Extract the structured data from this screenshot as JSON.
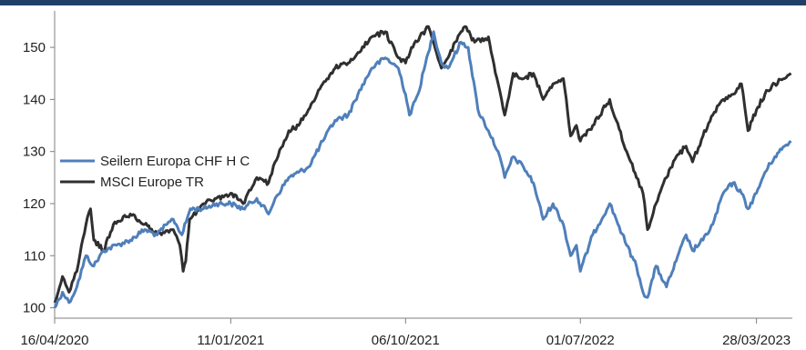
{
  "colors": {
    "header_bar": "#1f3f66",
    "axis": "#7f7f7f",
    "seilern": "#4f7fba",
    "msci": "#2f2f2f"
  },
  "chart_data": {
    "type": "line",
    "title": "",
    "xlabel": "",
    "ylabel": "",
    "grid": false,
    "legend_position": "left-middle",
    "xlim": [
      "2020-04-16",
      "2023-05-22"
    ],
    "ylim": [
      98,
      157
    ],
    "yticks": [
      100,
      110,
      120,
      130,
      140,
      150
    ],
    "xticks": [
      "16/04/2020",
      "11/01/2021",
      "06/10/2021",
      "01/07/2022",
      "28/03/2023"
    ],
    "series": [
      {
        "name": "Seilern Europa CHF H C",
        "color": "#4f7fba",
        "points": [
          [
            "2020-04-16",
            100
          ],
          [
            "2020-04-28",
            103
          ],
          [
            "2020-05-08",
            101
          ],
          [
            "2020-05-20",
            104
          ],
          [
            "2020-06-03",
            110
          ],
          [
            "2020-06-15",
            108
          ],
          [
            "2020-06-30",
            111
          ],
          [
            "2020-07-20",
            112
          ],
          [
            "2020-08-10",
            113
          ],
          [
            "2020-09-01",
            115
          ],
          [
            "2020-09-20",
            114
          ],
          [
            "2020-10-05",
            116
          ],
          [
            "2020-10-15",
            117
          ],
          [
            "2020-10-28",
            114
          ],
          [
            "2020-11-10",
            119
          ],
          [
            "2020-11-30",
            119
          ],
          [
            "2020-12-20",
            120
          ],
          [
            "2021-01-11",
            120
          ],
          [
            "2021-01-30",
            119
          ],
          [
            "2021-02-20",
            121
          ],
          [
            "2021-03-10",
            118
          ],
          [
            "2021-03-20",
            121
          ],
          [
            "2021-04-10",
            125
          ],
          [
            "2021-04-25",
            126
          ],
          [
            "2021-05-10",
            127
          ],
          [
            "2021-06-01",
            132
          ],
          [
            "2021-06-20",
            136
          ],
          [
            "2021-07-10",
            137
          ],
          [
            "2021-07-25",
            141
          ],
          [
            "2021-08-15",
            146
          ],
          [
            "2021-09-05",
            148
          ],
          [
            "2021-09-25",
            146
          ],
          [
            "2021-10-06",
            141
          ],
          [
            "2021-10-12",
            137
          ],
          [
            "2021-10-25",
            141
          ],
          [
            "2021-11-10",
            149
          ],
          [
            "2021-11-18",
            153
          ],
          [
            "2021-11-30",
            147
          ],
          [
            "2021-12-10",
            146
          ],
          [
            "2021-12-30",
            151
          ],
          [
            "2022-01-10",
            150
          ],
          [
            "2022-01-25",
            138
          ],
          [
            "2022-02-10",
            134
          ],
          [
            "2022-02-25",
            130
          ],
          [
            "2022-03-07",
            125
          ],
          [
            "2022-03-20",
            129
          ],
          [
            "2022-04-05",
            127
          ],
          [
            "2022-04-20",
            124
          ],
          [
            "2022-05-05",
            117
          ],
          [
            "2022-05-20",
            120
          ],
          [
            "2022-06-05",
            116
          ],
          [
            "2022-06-16",
            110
          ],
          [
            "2022-06-25",
            112
          ],
          [
            "2022-07-01",
            107
          ],
          [
            "2022-07-20",
            114
          ],
          [
            "2022-08-15",
            120
          ],
          [
            "2022-08-25",
            117
          ],
          [
            "2022-09-10",
            112
          ],
          [
            "2022-09-25",
            108
          ],
          [
            "2022-10-05",
            103
          ],
          [
            "2022-10-12",
            102
          ],
          [
            "2022-10-25",
            108
          ],
          [
            "2022-11-10",
            104
          ],
          [
            "2022-11-25",
            109
          ],
          [
            "2022-12-10",
            114
          ],
          [
            "2022-12-20",
            111
          ],
          [
            "2023-01-05",
            113
          ],
          [
            "2023-01-20",
            116
          ],
          [
            "2023-02-05",
            122
          ],
          [
            "2023-02-20",
            124
          ],
          [
            "2023-03-05",
            122
          ],
          [
            "2023-03-15",
            119
          ],
          [
            "2023-03-28",
            122
          ],
          [
            "2023-04-10",
            126
          ],
          [
            "2023-04-25",
            129
          ],
          [
            "2023-05-10",
            131
          ],
          [
            "2023-05-20",
            132
          ]
        ]
      },
      {
        "name": "MSCI Europe TR",
        "color": "#2f2f2f",
        "points": [
          [
            "2020-04-16",
            101
          ],
          [
            "2020-04-28",
            106
          ],
          [
            "2020-05-08",
            103
          ],
          [
            "2020-05-20",
            107
          ],
          [
            "2020-06-03",
            116
          ],
          [
            "2020-06-10",
            119
          ],
          [
            "2020-06-15",
            113
          ],
          [
            "2020-06-30",
            111
          ],
          [
            "2020-07-15",
            116
          ],
          [
            "2020-08-10",
            118
          ],
          [
            "2020-09-01",
            116
          ],
          [
            "2020-09-20",
            114
          ],
          [
            "2020-10-15",
            115
          ],
          [
            "2020-10-25",
            112
          ],
          [
            "2020-10-30",
            107
          ],
          [
            "2020-11-03",
            109
          ],
          [
            "2020-11-09",
            117
          ],
          [
            "2020-11-30",
            120
          ],
          [
            "2020-12-20",
            121
          ],
          [
            "2021-01-11",
            122
          ],
          [
            "2021-01-30",
            120
          ],
          [
            "2021-02-20",
            125
          ],
          [
            "2021-03-10",
            124
          ],
          [
            "2021-03-20",
            128
          ],
          [
            "2021-04-10",
            134
          ],
          [
            "2021-04-25",
            135
          ],
          [
            "2021-05-10",
            138
          ],
          [
            "2021-06-01",
            143
          ],
          [
            "2021-06-20",
            146
          ],
          [
            "2021-07-10",
            147
          ],
          [
            "2021-07-25",
            149
          ],
          [
            "2021-08-15",
            152
          ],
          [
            "2021-09-05",
            153
          ],
          [
            "2021-09-25",
            148
          ],
          [
            "2021-10-06",
            147
          ],
          [
            "2021-10-15",
            150
          ],
          [
            "2021-11-10",
            154
          ],
          [
            "2021-11-20",
            150
          ],
          [
            "2021-11-30",
            146
          ],
          [
            "2021-12-10",
            148
          ],
          [
            "2021-12-30",
            153
          ],
          [
            "2022-01-05",
            154
          ],
          [
            "2022-01-20",
            151
          ],
          [
            "2022-02-10",
            152
          ],
          [
            "2022-02-25",
            143
          ],
          [
            "2022-03-07",
            137
          ],
          [
            "2022-03-20",
            145
          ],
          [
            "2022-04-05",
            144
          ],
          [
            "2022-04-20",
            145
          ],
          [
            "2022-05-05",
            140
          ],
          [
            "2022-05-20",
            143
          ],
          [
            "2022-06-05",
            144
          ],
          [
            "2022-06-16",
            133
          ],
          [
            "2022-06-25",
            135
          ],
          [
            "2022-07-01",
            132
          ],
          [
            "2022-07-20",
            135
          ],
          [
            "2022-08-15",
            140
          ],
          [
            "2022-08-25",
            136
          ],
          [
            "2022-09-10",
            130
          ],
          [
            "2022-09-25",
            125
          ],
          [
            "2022-10-05",
            122
          ],
          [
            "2022-10-12",
            115
          ],
          [
            "2022-10-25",
            120
          ],
          [
            "2022-11-10",
            125
          ],
          [
            "2022-11-25",
            129
          ],
          [
            "2022-12-10",
            131
          ],
          [
            "2022-12-20",
            128
          ],
          [
            "2023-01-05",
            133
          ],
          [
            "2023-01-20",
            137
          ],
          [
            "2023-02-05",
            140
          ],
          [
            "2023-02-20",
            141
          ],
          [
            "2023-03-05",
            143
          ],
          [
            "2023-03-15",
            134
          ],
          [
            "2023-03-28",
            138
          ],
          [
            "2023-04-10",
            141
          ],
          [
            "2023-04-25",
            143
          ],
          [
            "2023-05-10",
            144
          ],
          [
            "2023-05-20",
            145
          ]
        ]
      }
    ]
  }
}
